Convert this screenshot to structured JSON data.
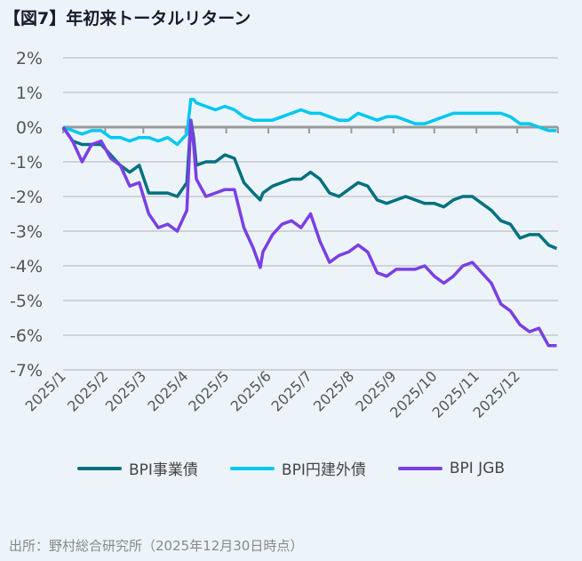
{
  "title": "【図7】年初来トータルリターン",
  "source": "出所：野村総合研究所（2025年12月30日時点）",
  "chart_data": {
    "type": "line",
    "ylim": [
      -7,
      2
    ],
    "yticks": [
      2,
      1,
      0,
      -1,
      -2,
      -3,
      -4,
      -5,
      -6,
      -7
    ],
    "ytick_labels": [
      "2%",
      "1%",
      "0%",
      "-1%",
      "-2%",
      "-3%",
      "-4%",
      "-5%",
      "-6%",
      "-7%"
    ],
    "xticks": [
      "2025-01-01",
      "2025-02-01",
      "2025-03-01",
      "2025-04-01",
      "2025-05-01",
      "2025-06-01",
      "2025-07-01",
      "2025-08-01",
      "2025-09-01",
      "2025-10-01",
      "2025-11-01",
      "2025-12-01"
    ],
    "xtick_labels": [
      "2025/1",
      "2025/2",
      "2025/3",
      "2025/4",
      "2025/5",
      "2025/6",
      "2025/7",
      "2025/8",
      "2025/9",
      "2025/10",
      "2025/11",
      "2025/12"
    ],
    "xlim": [
      "2025-01-01",
      "2025-12-31"
    ],
    "grid": true,
    "legend": "bottom",
    "dates": [
      "2025-01-01",
      "2025-01-08",
      "2025-01-15",
      "2025-01-22",
      "2025-01-29",
      "2025-02-05",
      "2025-02-12",
      "2025-02-19",
      "2025-02-26",
      "2025-03-05",
      "2025-03-12",
      "2025-03-19",
      "2025-03-26",
      "2025-04-02",
      "2025-04-05",
      "2025-04-07",
      "2025-04-09",
      "2025-04-16",
      "2025-04-23",
      "2025-04-30",
      "2025-05-07",
      "2025-05-14",
      "2025-05-21",
      "2025-05-26",
      "2025-05-28",
      "2025-06-04",
      "2025-06-11",
      "2025-06-18",
      "2025-06-25",
      "2025-07-02",
      "2025-07-09",
      "2025-07-16",
      "2025-07-23",
      "2025-07-30",
      "2025-08-06",
      "2025-08-13",
      "2025-08-20",
      "2025-08-27",
      "2025-09-03",
      "2025-09-10",
      "2025-09-17",
      "2025-09-24",
      "2025-10-01",
      "2025-10-08",
      "2025-10-15",
      "2025-10-22",
      "2025-10-29",
      "2025-11-05",
      "2025-11-12",
      "2025-11-19",
      "2025-11-26",
      "2025-12-03",
      "2025-12-10",
      "2025-12-17",
      "2025-12-24",
      "2025-12-30"
    ],
    "series": [
      {
        "name": "BPI事業債",
        "color": "#00707f",
        "values": [
          0,
          -0.4,
          -0.5,
          -0.5,
          -0.5,
          -0.8,
          -1.1,
          -1.3,
          -1.1,
          -1.9,
          -1.9,
          -1.9,
          -2.0,
          -1.6,
          0.2,
          -0.3,
          -1.1,
          -1.0,
          -1.0,
          -0.8,
          -0.9,
          -1.6,
          -1.9,
          -2.1,
          -1.9,
          -1.7,
          -1.6,
          -1.5,
          -1.5,
          -1.3,
          -1.5,
          -1.9,
          -2.0,
          -1.8,
          -1.6,
          -1.7,
          -2.1,
          -2.2,
          -2.1,
          -2.0,
          -2.1,
          -2.2,
          -2.2,
          -2.3,
          -2.1,
          -2.0,
          -2.0,
          -2.2,
          -2.4,
          -2.7,
          -2.8,
          -3.2,
          -3.1,
          -3.1,
          -3.4,
          -3.5
        ]
      },
      {
        "name": "BPI円建外債",
        "color": "#00c8f0",
        "values": [
          0,
          -0.1,
          -0.2,
          -0.1,
          -0.1,
          -0.3,
          -0.3,
          -0.4,
          -0.3,
          -0.3,
          -0.4,
          -0.3,
          -0.5,
          -0.2,
          0.8,
          0.8,
          0.7,
          0.6,
          0.5,
          0.6,
          0.5,
          0.3,
          0.2,
          0.2,
          0.2,
          0.2,
          0.3,
          0.4,
          0.5,
          0.4,
          0.4,
          0.3,
          0.2,
          0.2,
          0.4,
          0.3,
          0.2,
          0.3,
          0.3,
          0.2,
          0.1,
          0.1,
          0.2,
          0.3,
          0.4,
          0.4,
          0.4,
          0.4,
          0.4,
          0.4,
          0.3,
          0.1,
          0.1,
          0.0,
          -0.1,
          -0.1
        ]
      },
      {
        "name": "BPI JGB",
        "color": "#7b3fe4",
        "values": [
          0,
          -0.4,
          -1.0,
          -0.5,
          -0.4,
          -0.9,
          -1.1,
          -1.7,
          -1.6,
          -2.5,
          -2.9,
          -2.8,
          -3.0,
          -2.4,
          0.2,
          -0.5,
          -1.5,
          -2.0,
          -1.9,
          -1.8,
          -1.8,
          -2.9,
          -3.5,
          -4.05,
          -3.6,
          -3.1,
          -2.8,
          -2.7,
          -2.9,
          -2.5,
          -3.3,
          -3.9,
          -3.7,
          -3.6,
          -3.4,
          -3.6,
          -4.2,
          -4.3,
          -4.1,
          -4.1,
          -4.1,
          -4.0,
          -4.3,
          -4.5,
          -4.3,
          -4.0,
          -3.9,
          -4.2,
          -4.5,
          -5.1,
          -5.3,
          -5.7,
          -5.9,
          -5.8,
          -6.3,
          -6.3
        ]
      }
    ]
  }
}
